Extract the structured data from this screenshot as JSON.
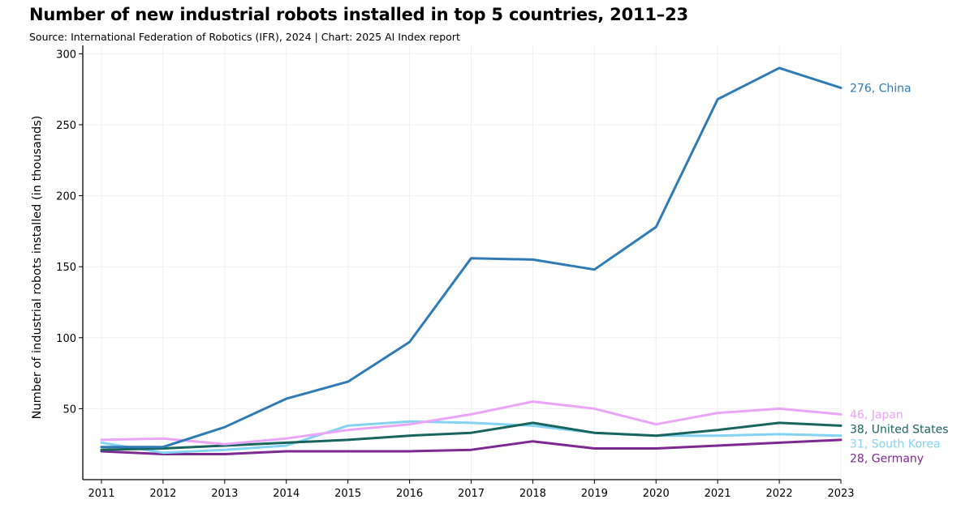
{
  "chart_data": {
    "type": "line",
    "title": "Number of new industrial robots installed in top 5 countries, 2011–23",
    "subtitle": "Source: International Federation of Robotics (IFR), 2024 | Chart: 2025 AI Index report",
    "xlabel": "",
    "ylabel": "Number of industrial robots installed (in thousands)",
    "x": [
      2011,
      2012,
      2013,
      2014,
      2015,
      2016,
      2017,
      2018,
      2019,
      2020,
      2021,
      2022,
      2023
    ],
    "x_tick_labels": [
      "2011",
      "2012",
      "2013",
      "2014",
      "2015",
      "2016",
      "2017",
      "2018",
      "2019",
      "2020",
      "2021",
      "2022",
      "2023"
    ],
    "ylim": [
      0,
      300
    ],
    "y_ticks": [
      50,
      100,
      150,
      200,
      250,
      300
    ],
    "y_tick_labels": [
      "50",
      "100",
      "150",
      "200",
      "250",
      "300"
    ],
    "grid": true,
    "series": [
      {
        "name": "China",
        "label": "276, China",
        "color": "#2e7bb5",
        "values": [
          23,
          23,
          37,
          57,
          69,
          97,
          156,
          155,
          148,
          178,
          268,
          290,
          276
        ]
      },
      {
        "name": "Japan",
        "label": "46, Japan",
        "color": "#e9a6f6",
        "values": [
          28,
          29,
          25,
          29,
          35,
          39,
          46,
          55,
          50,
          39,
          47,
          50,
          46
        ]
      },
      {
        "name": "United States",
        "label": "38, United States",
        "color": "#19655e",
        "values": [
          21,
          22,
          24,
          26,
          28,
          31,
          33,
          40,
          33,
          31,
          35,
          40,
          38
        ]
      },
      {
        "name": "South Korea",
        "label": "31, South Korea",
        "color": "#84d3f0",
        "values": [
          26,
          19,
          21,
          24,
          38,
          41,
          40,
          38,
          33,
          31,
          31,
          32,
          31
        ]
      },
      {
        "name": "Germany",
        "label": "28, Germany",
        "color": "#7c2a8f",
        "values": [
          20,
          18,
          18,
          20,
          20,
          20,
          21,
          27,
          22,
          22,
          24,
          26,
          28
        ]
      }
    ]
  }
}
